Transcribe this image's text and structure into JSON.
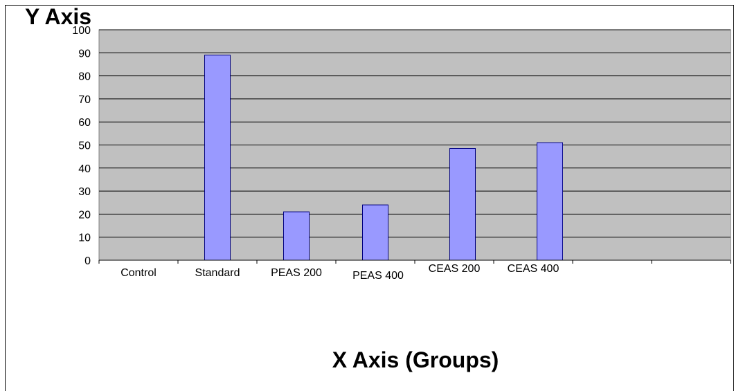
{
  "chart_data": {
    "type": "bar",
    "title": "",
    "xlabel": "X Axis (Groups)",
    "ylabel": "Y Axis",
    "categories": [
      "Control",
      "Standard",
      "PEAS 200",
      "PEAS 400",
      "CEAS 200",
      "CEAS 400"
    ],
    "values": [
      0,
      89,
      21,
      24,
      48.5,
      51
    ],
    "ylim": [
      0,
      100
    ],
    "yticks": [
      0,
      10,
      20,
      30,
      40,
      50,
      60,
      70,
      80,
      90,
      100
    ],
    "grid": true,
    "legend": "none",
    "colors": {
      "bar_fill": "#9999ff",
      "bar_stroke": "#000080",
      "plot_background": "#c0c0c0",
      "gridline": "#000000"
    }
  }
}
